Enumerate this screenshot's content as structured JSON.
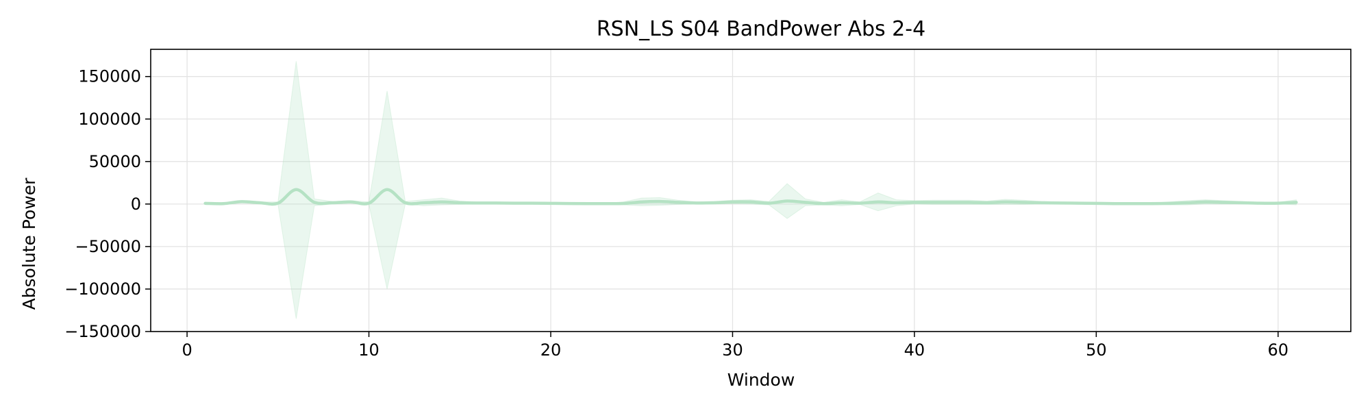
{
  "chart_data": {
    "type": "line",
    "title": "RSN_LS S04 BandPower Abs 2-4",
    "xlabel": "Window",
    "ylabel": "Absolute Power",
    "xlim": [
      -2,
      64
    ],
    "ylim": [
      -150000,
      182000
    ],
    "xticks": [
      0,
      10,
      20,
      30,
      40,
      50,
      60
    ],
    "yticks": [
      -150000,
      -100000,
      -50000,
      0,
      50000,
      100000,
      150000
    ],
    "grid": true,
    "colors": {
      "line": "#b5e2c4",
      "band": "#b5e2c4"
    },
    "series": [
      {
        "x": [
          1,
          2,
          3,
          4,
          5,
          6,
          7,
          8,
          9,
          10,
          11,
          12,
          13,
          14,
          15,
          16,
          17,
          18,
          19,
          20,
          21,
          22,
          23,
          24,
          25,
          26,
          27,
          28,
          29,
          30,
          31,
          32,
          33,
          34,
          35,
          36,
          37,
          38,
          39,
          40,
          41,
          42,
          43,
          44,
          45,
          46,
          47,
          48,
          49,
          50,
          51,
          52,
          53,
          54,
          55,
          56,
          57,
          58,
          59,
          60,
          61
        ],
        "mean": [
          800,
          500,
          2800,
          1500,
          1000,
          17000,
          2000,
          1500,
          2500,
          1000,
          17000,
          1500,
          1500,
          2500,
          1500,
          1200,
          1200,
          1000,
          1000,
          800,
          600,
          500,
          500,
          700,
          2500,
          3000,
          2000,
          1200,
          1500,
          2500,
          2500,
          1000,
          3500,
          2000,
          500,
          1500,
          1000,
          2500,
          1500,
          2000,
          2000,
          2000,
          2000,
          1500,
          2500,
          2000,
          1500,
          1200,
          1000,
          800,
          500,
          500,
          500,
          800,
          1500,
          2500,
          2000,
          1500,
          1000,
          1000,
          2000
        ],
        "upper": [
          1500,
          900,
          4000,
          2500,
          2500,
          168000,
          6000,
          3000,
          4000,
          2500,
          133000,
          3000,
          5000,
          7000,
          3500,
          2500,
          2500,
          2000,
          2000,
          1500,
          1200,
          1000,
          1000,
          2500,
          7000,
          7500,
          4500,
          2500,
          3000,
          4500,
          5000,
          3000,
          24000,
          6000,
          2000,
          5000,
          2500,
          13000,
          5000,
          4000,
          4500,
          4500,
          4500,
          3500,
          5500,
          4500,
          3000,
          2500,
          2000,
          1500,
          1000,
          1000,
          1000,
          2500,
          4000,
          5000,
          4000,
          3000,
          2000,
          2000,
          5000
        ],
        "lower": [
          200,
          100,
          1800,
          500,
          -500,
          -135000,
          -2000,
          0,
          1000,
          -500,
          -100000,
          0,
          -2000,
          -1000,
          -500,
          0,
          0,
          0,
          0,
          100,
          0,
          0,
          0,
          -1000,
          -2000,
          -1500,
          -500,
          0,
          0,
          500,
          0,
          -1000,
          -17000,
          -2000,
          -1000,
          -2000,
          -500,
          -8000,
          -2000,
          0,
          -500,
          -500,
          -500,
          -500,
          -500,
          -500,
          0,
          0,
          0,
          100,
          0,
          0,
          0,
          -1000,
          -1000,
          0,
          0,
          0,
          0,
          0,
          -1000
        ]
      }
    ]
  }
}
